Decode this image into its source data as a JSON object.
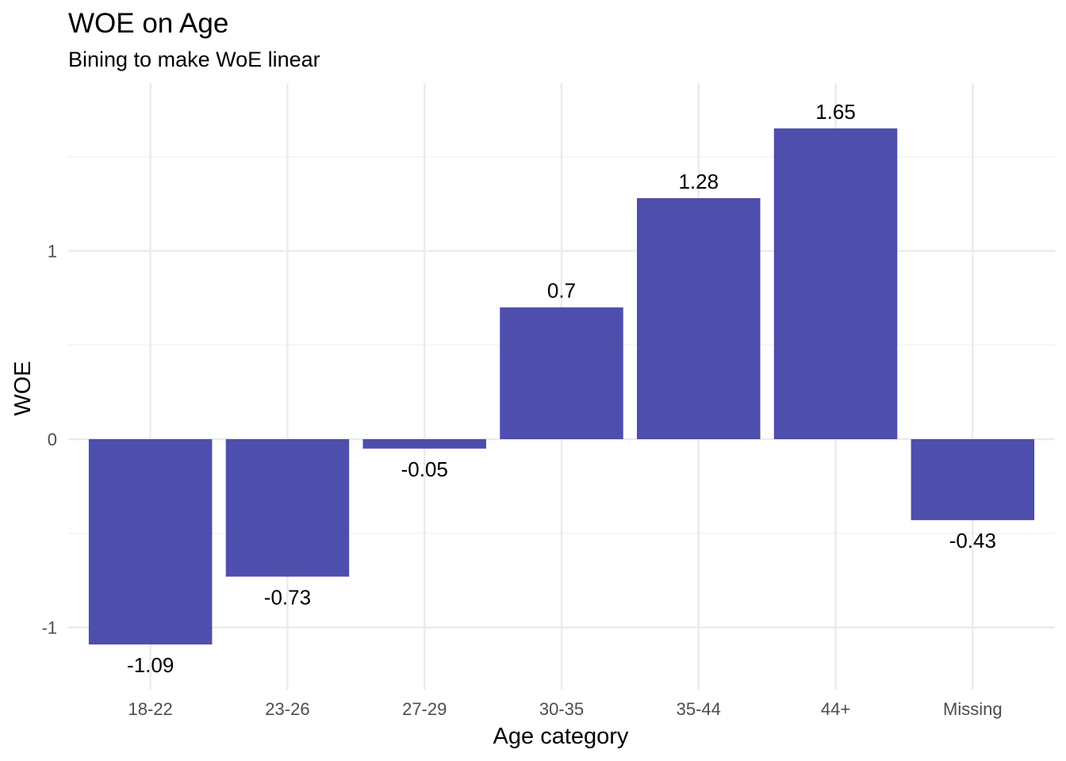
{
  "chart_data": {
    "type": "bar",
    "title": "WOE on Age",
    "subtitle": "Bining to make WoE linear",
    "xlabel": "Age category",
    "ylabel": "WOE",
    "categories": [
      "18-22",
      "23-26",
      "27-29",
      "30-35",
      "35-44",
      "44+",
      "Missing"
    ],
    "values": [
      -1.09,
      -0.73,
      -0.05,
      0.7,
      1.28,
      1.65,
      -0.43
    ],
    "data_labels": [
      "-1.09",
      "-0.73",
      "-0.05",
      "0.7",
      "1.28",
      "1.65",
      "-0.43"
    ],
    "y_ticks": [
      -1,
      0,
      1
    ],
    "y_tick_labels": [
      "-1",
      "0",
      "1"
    ],
    "ylim": [
      -1.33,
      1.89
    ],
    "grid": true,
    "legend": "none",
    "bar_color": "#3f3fa6",
    "bar_opacity": 0.92
  }
}
